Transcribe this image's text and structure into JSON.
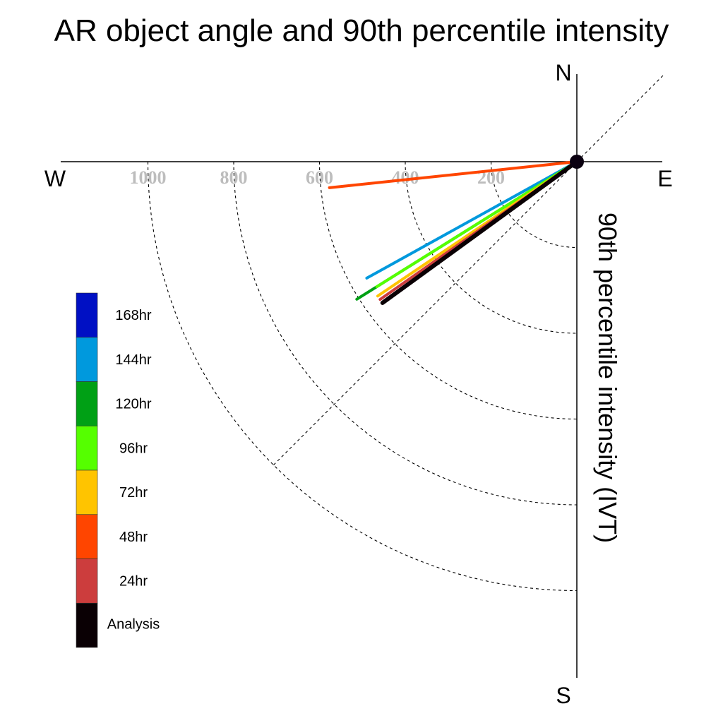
{
  "chart_data": {
    "type": "line",
    "title": "AR object angle and 90th percentile intensity",
    "ylabel": "90th percentile intensity (IVT)",
    "compass": {
      "north": "N",
      "south": "S",
      "east": "E",
      "west": "W"
    },
    "radial_ticks": [
      "1000",
      "800",
      "600",
      "400",
      "200"
    ],
    "radial_tick_values": [
      1000,
      800,
      600,
      400,
      200
    ],
    "radial_circle_values": [
      200,
      400,
      600,
      800,
      1000
    ],
    "radial_max": 1000,
    "grid": true,
    "legend_placement": "left",
    "series": [
      {
        "name": "168hr",
        "color": "#0010c4",
        "intensity": 0,
        "angle_deg": 0
      },
      {
        "name": "144hr",
        "color": "#0099dd",
        "intensity": 560,
        "angle_deg": 209
      },
      {
        "name": "120hr",
        "color": "#00a015",
        "intensity": 605,
        "angle_deg": 212
      },
      {
        "name": "96hr",
        "color": "#55ff00",
        "intensity": 550,
        "angle_deg": 212
      },
      {
        "name": "72hr",
        "color": "#ffc400",
        "intensity": 560,
        "angle_deg": 214
      },
      {
        "name": "48hr",
        "color": "#ff4500",
        "intensity": 580,
        "angle_deg": 186
      },
      {
        "name": "24hr",
        "color": "#cc3d3d",
        "intensity": 560,
        "angle_deg": 215
      },
      {
        "name": "Analysis",
        "color": "#0a0004",
        "intensity": 560,
        "angle_deg": 216
      }
    ]
  }
}
